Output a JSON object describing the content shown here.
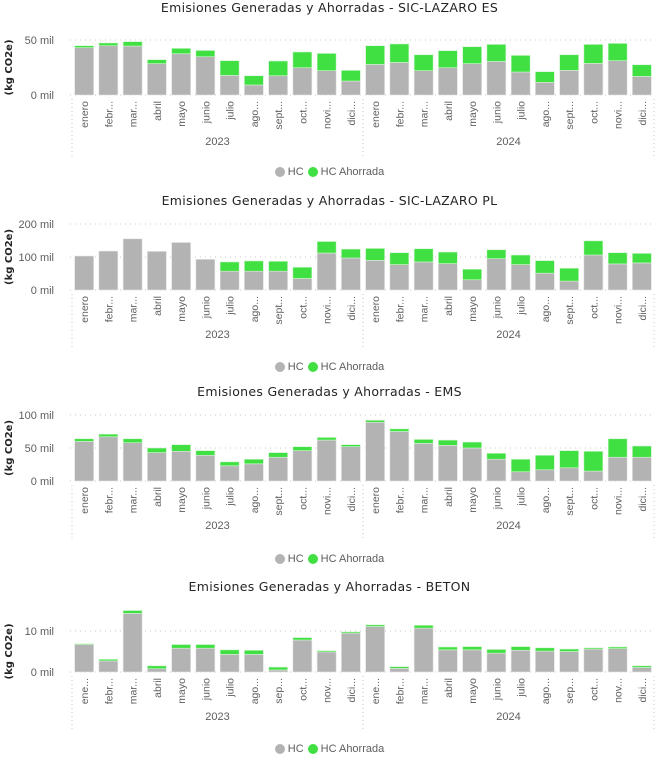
{
  "legend": {
    "series": [
      {
        "name": "HC",
        "color": "#b3b3b3"
      },
      {
        "name": "HC Ahorrada",
        "color": "#41e042"
      }
    ]
  },
  "chart_data": [
    {
      "type": "bar",
      "stacked": true,
      "title": "Emisiones Generadas y Ahorradas - SIC-LAZARO ES",
      "ylabel": "(kg CO2e)",
      "xlabel": "",
      "ylim": [
        0,
        50
      ],
      "yticks": [
        {
          "value": 0,
          "label": "0 mil"
        },
        {
          "value": 50,
          "label": "50 mil"
        }
      ],
      "grid": true,
      "legend_position": "bottom-center",
      "years": [
        "2023",
        "2024"
      ],
      "categories": [
        "enero",
        "febr...",
        "mar...",
        "abril",
        "mayo",
        "junio",
        "julio",
        "ago...",
        "sept...",
        "oct...",
        "novi...",
        "dici...",
        "enero",
        "febr...",
        "mar...",
        "abril",
        "mayo",
        "junio",
        "julio",
        "ago...",
        "sept...",
        "oct...",
        "novi...",
        "dici..."
      ],
      "series": [
        {
          "name": "HC",
          "values": [
            43.0,
            44.8,
            44.5,
            28.5,
            37.5,
            34.8,
            17.8,
            9.1,
            17.5,
            24.8,
            22.1,
            12.7,
            27.8,
            29.6,
            22.1,
            24.8,
            28.5,
            30.5,
            20.9,
            11.5,
            22.4,
            28.7,
            31.2,
            16.9
          ]
        },
        {
          "name": "HC Ahorrada",
          "values": [
            1.8,
            2.5,
            4.0,
            3.6,
            4.9,
            5.7,
            13.4,
            8.4,
            13.4,
            14.3,
            15.7,
            9.7,
            17.0,
            16.8,
            14.5,
            15.5,
            15.4,
            15.5,
            15.1,
            9.7,
            14.2,
            17.3,
            15.7,
            10.6
          ]
        }
      ]
    },
    {
      "type": "bar",
      "stacked": true,
      "title": "Emisiones Generadas y Ahorradas - SIC-LAZARO PL",
      "ylabel": "(kg CO2e)",
      "xlabel": "",
      "ylim": [
        0,
        200
      ],
      "yticks": [
        {
          "value": 0,
          "label": "0 mil"
        },
        {
          "value": 100,
          "label": "100 mil"
        },
        {
          "value": 200,
          "label": "200 mil"
        }
      ],
      "grid": true,
      "legend_position": "bottom-center",
      "years": [
        "2023",
        "2024"
      ],
      "categories": [
        "enero",
        "febr...",
        "mar...",
        "abril",
        "mayo",
        "junio",
        "julio",
        "ago...",
        "sept...",
        "oct...",
        "novi...",
        "dici...",
        "enero",
        "febr...",
        "mar...",
        "abril",
        "mayo",
        "junio",
        "julio",
        "ago...",
        "sept...",
        "oct...",
        "novi...",
        "dici..."
      ],
      "series": [
        {
          "name": "HC",
          "values": [
            103,
            118,
            155,
            117,
            144,
            93,
            57,
            57,
            57,
            35,
            112,
            97,
            90,
            77,
            85,
            80,
            31,
            95,
            77,
            51,
            27,
            106,
            79,
            82
          ]
        },
        {
          "name": "HC Ahorrada",
          "values": [
            0,
            0,
            0,
            0,
            0,
            0,
            28,
            31,
            30,
            34,
            35,
            27,
            36,
            36,
            40,
            35,
            32,
            27,
            29,
            38,
            39,
            43,
            34,
            29
          ]
        }
      ]
    },
    {
      "type": "bar",
      "stacked": true,
      "title": "Emisiones Generadas y Ahorradas - EMS",
      "ylabel": "(kg CO2e)",
      "xlabel": "",
      "ylim": [
        0,
        100
      ],
      "yticks": [
        {
          "value": 0,
          "label": "0 mil"
        },
        {
          "value": 50,
          "label": "50 mil"
        },
        {
          "value": 100,
          "label": "100 mil"
        }
      ],
      "grid": true,
      "legend_position": "bottom-center",
      "years": [
        "2023",
        "2024"
      ],
      "categories": [
        "enero",
        "febr...",
        "mar...",
        "abril",
        "mayo",
        "junio",
        "julio",
        "ago...",
        "sept...",
        "oct...",
        "novi...",
        "dici...",
        "enero",
        "febr...",
        "mar...",
        "abril",
        "mayo",
        "junio",
        "julio",
        "ago...",
        "sept...",
        "oct...",
        "novi...",
        "dici..."
      ],
      "series": [
        {
          "name": "HC",
          "values": [
            60,
            67,
            58,
            43,
            45,
            39,
            23,
            26,
            36,
            46,
            62,
            52,
            89,
            75,
            57,
            54,
            50,
            33,
            14,
            17,
            20,
            15,
            36,
            36
          ]
        },
        {
          "name": "HC Ahorrada",
          "values": [
            4,
            4,
            6,
            7,
            10,
            7,
            6,
            7,
            7,
            6,
            4,
            3,
            3,
            4,
            6,
            8,
            9,
            9,
            19,
            22,
            26,
            30,
            28,
            17
          ]
        }
      ]
    },
    {
      "type": "bar",
      "stacked": true,
      "title": "Emisiones Generadas y Ahorradas - BETON",
      "ylabel": "(kg CO2e)",
      "xlabel": "",
      "ylim": [
        0,
        15
      ],
      "yticks": [
        {
          "value": 0,
          "label": "0 mil"
        },
        {
          "value": 10,
          "label": "10 mil"
        }
      ],
      "grid": true,
      "legend_position": "bottom-center",
      "years": [
        "2023",
        "2024"
      ],
      "categories": [
        "ene...",
        "febr...",
        "mar...",
        "abril",
        "mayo",
        "junio",
        "julio",
        "ago...",
        "sep...",
        "oct...",
        "nov...",
        "dici...",
        "ene...",
        "febr...",
        "mar...",
        "abril",
        "mayo",
        "junio",
        "julio",
        "ago...",
        "sep...",
        "oct...",
        "nov...",
        "dici..."
      ],
      "series": [
        {
          "name": "HC",
          "values": [
            6.7,
            2.7,
            14.3,
            0.8,
            5.8,
            5.8,
            4.3,
            4.3,
            0.5,
            7.8,
            4.9,
            9.5,
            11.1,
            0.9,
            10.7,
            5.4,
            5.4,
            4.6,
            5.3,
            5.1,
            5.0,
            5.6,
            5.7,
            1.1
          ]
        },
        {
          "name": "HC Ahorrada",
          "values": [
            0.2,
            0.4,
            0.7,
            0.7,
            0.9,
            0.9,
            1.1,
            1.0,
            0.7,
            0.6,
            0.3,
            0.3,
            0.4,
            0.4,
            0.7,
            0.7,
            0.8,
            0.9,
            0.9,
            0.8,
            0.6,
            0.3,
            0.4,
            0.4
          ]
        }
      ]
    }
  ]
}
